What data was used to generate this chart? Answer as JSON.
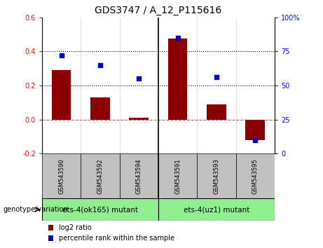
{
  "title": "GDS3747 / A_12_P115616",
  "categories": [
    "GSM543590",
    "GSM543592",
    "GSM543594",
    "GSM543591",
    "GSM543593",
    "GSM543595"
  ],
  "log2_ratio": [
    0.29,
    0.13,
    0.01,
    0.475,
    0.09,
    -0.12
  ],
  "percentile_rank": [
    72,
    65,
    55,
    85,
    56,
    10
  ],
  "left_ylim": [
    -0.2,
    0.6
  ],
  "right_ylim": [
    0,
    100
  ],
  "left_yticks": [
    -0.2,
    0.0,
    0.2,
    0.4,
    0.6
  ],
  "right_yticks": [
    0,
    25,
    50,
    75,
    100
  ],
  "bar_color": "#8B0000",
  "scatter_color": "#0000CD",
  "group1_label": "ets-4(ok165) mutant",
  "group2_label": "ets-4(uz1) mutant",
  "group_color": "#90EE90",
  "tick_label_bg": "#C0C0C0",
  "genotype_label": "genotype/variation",
  "legend_log2": "log2 ratio",
  "legend_pct": "percentile rank within the sample",
  "dotted_lines": [
    0.2,
    0.4
  ],
  "zero_line_color": "#CD5C5C",
  "bg_color": "#FFFFFF",
  "bar_width": 0.5
}
